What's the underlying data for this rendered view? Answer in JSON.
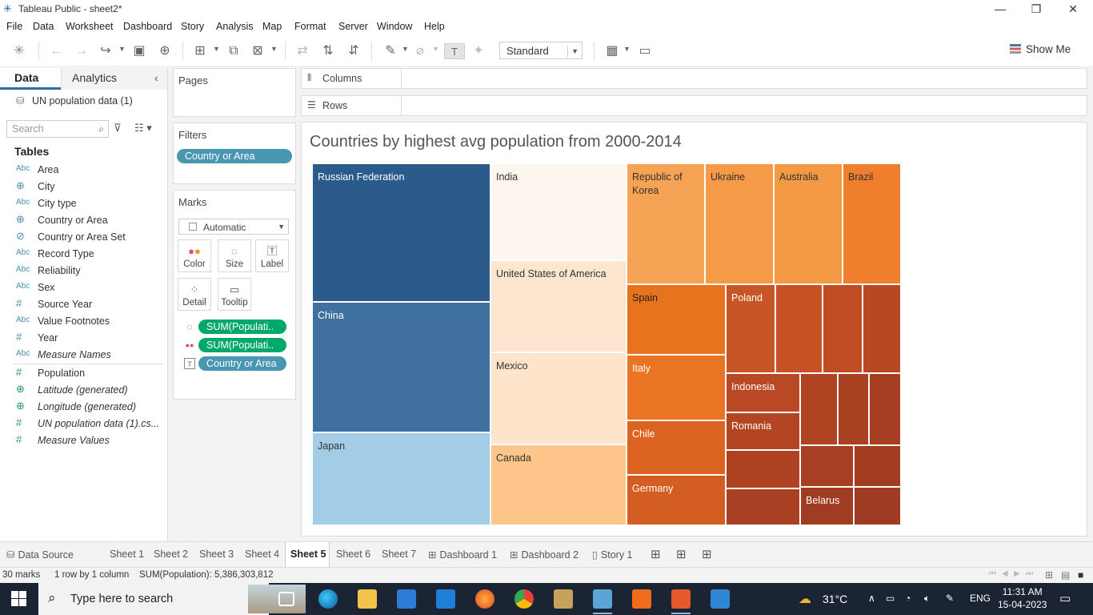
{
  "window": {
    "title": "Tableau Public - sheet2*"
  },
  "menu": [
    "File",
    "Data",
    "Worksheet",
    "Dashboard",
    "Story",
    "Analysis",
    "Map",
    "Format",
    "Server",
    "Window",
    "Help"
  ],
  "toolbar": {
    "fit_value": "Standard",
    "show_me_label": "Show Me"
  },
  "data_pane": {
    "tabs": {
      "data": "Data",
      "analytics": "Analytics"
    },
    "datasource": "UN population data (1)",
    "search_placeholder": "Search",
    "tables_heading": "Tables",
    "fields": [
      {
        "type": "Abc",
        "name": "Area"
      },
      {
        "type": "⊕",
        "name": "City"
      },
      {
        "type": "Abc",
        "name": "City type"
      },
      {
        "type": "⊕",
        "name": "Country or Area"
      },
      {
        "type": "⊘",
        "name": "Country or Area Set"
      },
      {
        "type": "Abc",
        "name": "Record Type"
      },
      {
        "type": "Abc",
        "name": "Reliability"
      },
      {
        "type": "Abc",
        "name": "Sex"
      },
      {
        "type": "#",
        "name": "Source Year"
      },
      {
        "type": "Abc",
        "name": "Value Footnotes"
      },
      {
        "type": "#",
        "name": "Year"
      },
      {
        "type": "Abc",
        "name": "Measure Names"
      }
    ],
    "measures": [
      {
        "type": "#",
        "name": "Population"
      },
      {
        "type": "⊕",
        "name": "Latitude (generated)"
      },
      {
        "type": "⊕",
        "name": "Longitude (generated)"
      },
      {
        "type": "#",
        "name": "UN population data (1).cs..."
      },
      {
        "type": "#",
        "name": "Measure Values"
      }
    ]
  },
  "cards": {
    "pages": "Pages",
    "filters": "Filters",
    "filter_pill": "Country or Area",
    "marks": "Marks",
    "mark_type": "Automatic",
    "mark_buttons": [
      "Color",
      "Size",
      "Label",
      "Detail",
      "Tooltip"
    ],
    "mark_pills": [
      "SUM(Populati..",
      "SUM(Populati..",
      "Country or Area"
    ]
  },
  "shelves": {
    "columns": "Columns",
    "rows": "Rows"
  },
  "sheet_title": "Countries by highest avg population from 2000-2014",
  "chart_data": {
    "type": "treemap",
    "title": "Countries by highest avg population from 2000-2014",
    "measure": "SUM(Population)",
    "labeled_cells": [
      "Russian Federation",
      "China",
      "Japan",
      "India",
      "United States of America",
      "Mexico",
      "Canada",
      "Republic of Korea",
      "Ukraine",
      "Australia",
      "Brazil",
      "Spain",
      "Poland",
      "Italy",
      "Chile",
      "Germany",
      "Indonesia",
      "Romania",
      "Belarus"
    ],
    "mark_count": 30,
    "colors": {
      "low": "#2b5b8a",
      "mid": "#fdf3e9",
      "high": "#9e3b22"
    }
  },
  "sheet_tabs": {
    "data_source": "Data Source",
    "tabs": [
      "Sheet 1",
      "Sheet 2",
      "Sheet 3",
      "Sheet 4",
      "Sheet 5",
      "Sheet 6",
      "Sheet 7"
    ],
    "active": "Sheet 5",
    "dashboards": [
      "Dashboard 1",
      "Dashboard 2"
    ],
    "story": "Story 1"
  },
  "status": {
    "marks": "30 marks",
    "dimensions": "1 row by 1 column",
    "sum": "SUM(Population): 5,386,303,812"
  },
  "taskbar": {
    "search_text": "Type here to search",
    "weather": "31°C",
    "lang": "ENG",
    "time": "11:31 AM",
    "date": "15-04-2023"
  }
}
